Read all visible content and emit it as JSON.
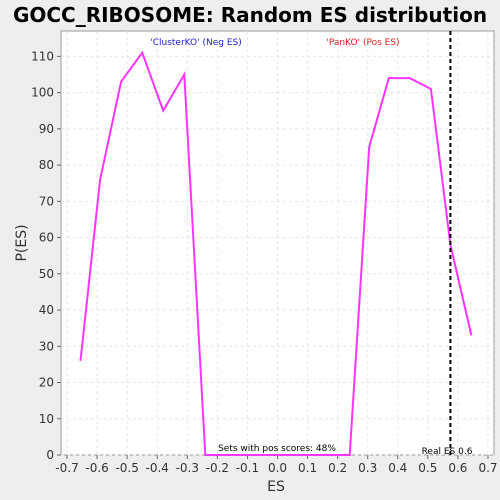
{
  "chart_data": {
    "type": "line",
    "title": "GOCC_RIBOSOME: Random ES distribution",
    "xlabel": "ES",
    "ylabel": "P(ES)",
    "xlim": [
      -0.72,
      0.72
    ],
    "ylim": [
      0,
      117
    ],
    "x_ticks": [
      -0.7,
      -0.6,
      -0.5,
      -0.4,
      -0.3,
      -0.2,
      -0.1,
      0.0,
      0.1,
      0.2,
      0.3,
      0.4,
      0.5,
      0.6,
      0.7
    ],
    "x_tick_labels": [
      "-0.7",
      "-0.6",
      "-0.5",
      "-0.4",
      "-0.3",
      "-0.2",
      "-0.1",
      "0.0",
      "0.1",
      "0.2",
      "0.3",
      "0.4",
      "0.5",
      "0.6",
      "0.7"
    ],
    "y_ticks": [
      0,
      10,
      20,
      30,
      40,
      50,
      60,
      70,
      80,
      90,
      100,
      110
    ],
    "grid": true,
    "line_color": "#ff33ff",
    "series": [
      {
        "x": [
          -0.655,
          -0.59,
          -0.52,
          -0.45,
          -0.38,
          -0.31,
          -0.24,
          0.24,
          0.305,
          0.37,
          0.44,
          0.51,
          0.575,
          0.645
        ],
        "y": [
          26,
          76,
          103,
          111,
          95,
          105,
          0,
          0,
          85,
          104,
          104,
          101,
          58,
          33
        ]
      }
    ],
    "real_es": 0.575,
    "annotations": {
      "neg": "'ClusterKO' (Neg ES)",
      "pos": "'PanKO' (Pos ES)",
      "pos_scores": "Sets with pos scores: 48%",
      "real_es_label": "Real ES 0.6"
    },
    "colors": {
      "neg": "#2222cc",
      "pos": "#dd2222",
      "real_es_line": "#000000"
    }
  }
}
